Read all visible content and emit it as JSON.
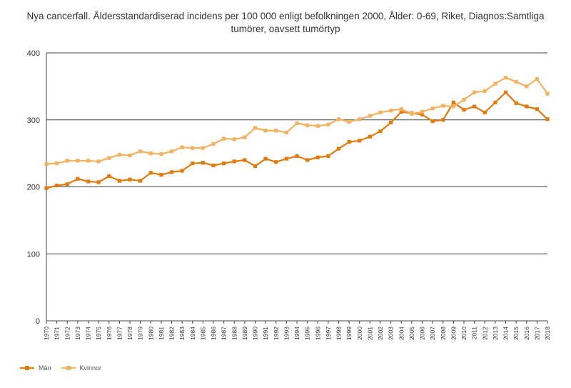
{
  "chart_data": {
    "type": "line",
    "title_lines": [
      "Nya cancerfall. Åldersstandardiserad incidens per 100 000 enligt befolkningen 2000, Ålder: 0-69, Riket, Diagnos:Samtliga",
      "tumörer, oavsett tumörtyp"
    ],
    "xlabel": "",
    "ylabel": "",
    "ylim": [
      0,
      400
    ],
    "yticks": [
      0,
      100,
      200,
      300,
      400
    ],
    "grid": true,
    "legend_position": "bottom-left",
    "x": [
      "1970",
      "1971",
      "1972",
      "1973",
      "1974",
      "1975",
      "1976",
      "1977",
      "1978",
      "1979",
      "1980",
      "1981",
      "1982",
      "1983",
      "1984",
      "1985",
      "1986",
      "1987",
      "1988",
      "1989",
      "1990",
      "1991",
      "1992",
      "1993",
      "1994",
      "1995",
      "1996",
      "1997",
      "1998",
      "1999",
      "2000",
      "2001",
      "2002",
      "2003",
      "2004",
      "2005",
      "2006",
      "2007",
      "2008",
      "2009",
      "2010",
      "2011",
      "2012",
      "2013",
      "2014",
      "2015",
      "2016",
      "2017",
      "2018"
    ],
    "series": [
      {
        "name": "Män",
        "color": "#e07b10",
        "values": [
          198,
          202,
          204,
          212,
          208,
          207,
          216,
          209,
          211,
          209,
          221,
          218,
          222,
          224,
          235,
          236,
          232,
          235,
          238,
          240,
          231,
          242,
          237,
          242,
          246,
          240,
          244,
          246,
          257,
          267,
          269,
          275,
          283,
          296,
          312,
          310,
          308,
          298,
          300,
          326,
          315,
          320,
          311,
          326,
          341,
          325,
          320,
          316,
          301
        ]
      },
      {
        "name": "Kvinnor",
        "color": "#f2b360",
        "values": [
          234,
          235,
          239,
          239,
          239,
          238,
          243,
          248,
          247,
          253,
          250,
          249,
          253,
          259,
          258,
          258,
          264,
          272,
          271,
          274,
          288,
          284,
          284,
          281,
          295,
          292,
          291,
          293,
          301,
          297,
          301,
          306,
          311,
          314,
          316,
          309,
          312,
          317,
          321,
          320,
          330,
          341,
          343,
          354,
          363,
          357,
          350,
          361,
          339
        ]
      }
    ]
  }
}
